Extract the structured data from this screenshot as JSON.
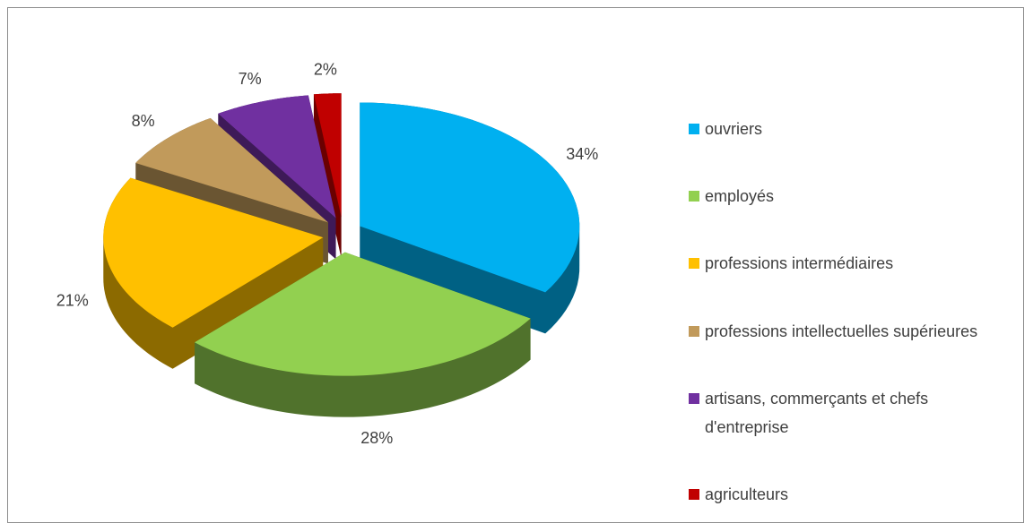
{
  "chart_data": {
    "type": "pie",
    "categories": [
      "ouvriers",
      "employés",
      "professions intermédiaires",
      "professions intellectuelles supérieures",
      "artisans, commerçants et chefs d'entreprise",
      "agriculteurs"
    ],
    "values": [
      34,
      28,
      21,
      8,
      7,
      2
    ],
    "value_labels": [
      "34%",
      "28%",
      "21%",
      "8%",
      "7%",
      "2%"
    ],
    "colors": [
      "#00b0f0",
      "#92d050",
      "#ffc000",
      "#c19a5b",
      "#7030a0",
      "#c00000"
    ],
    "legend": "right"
  }
}
